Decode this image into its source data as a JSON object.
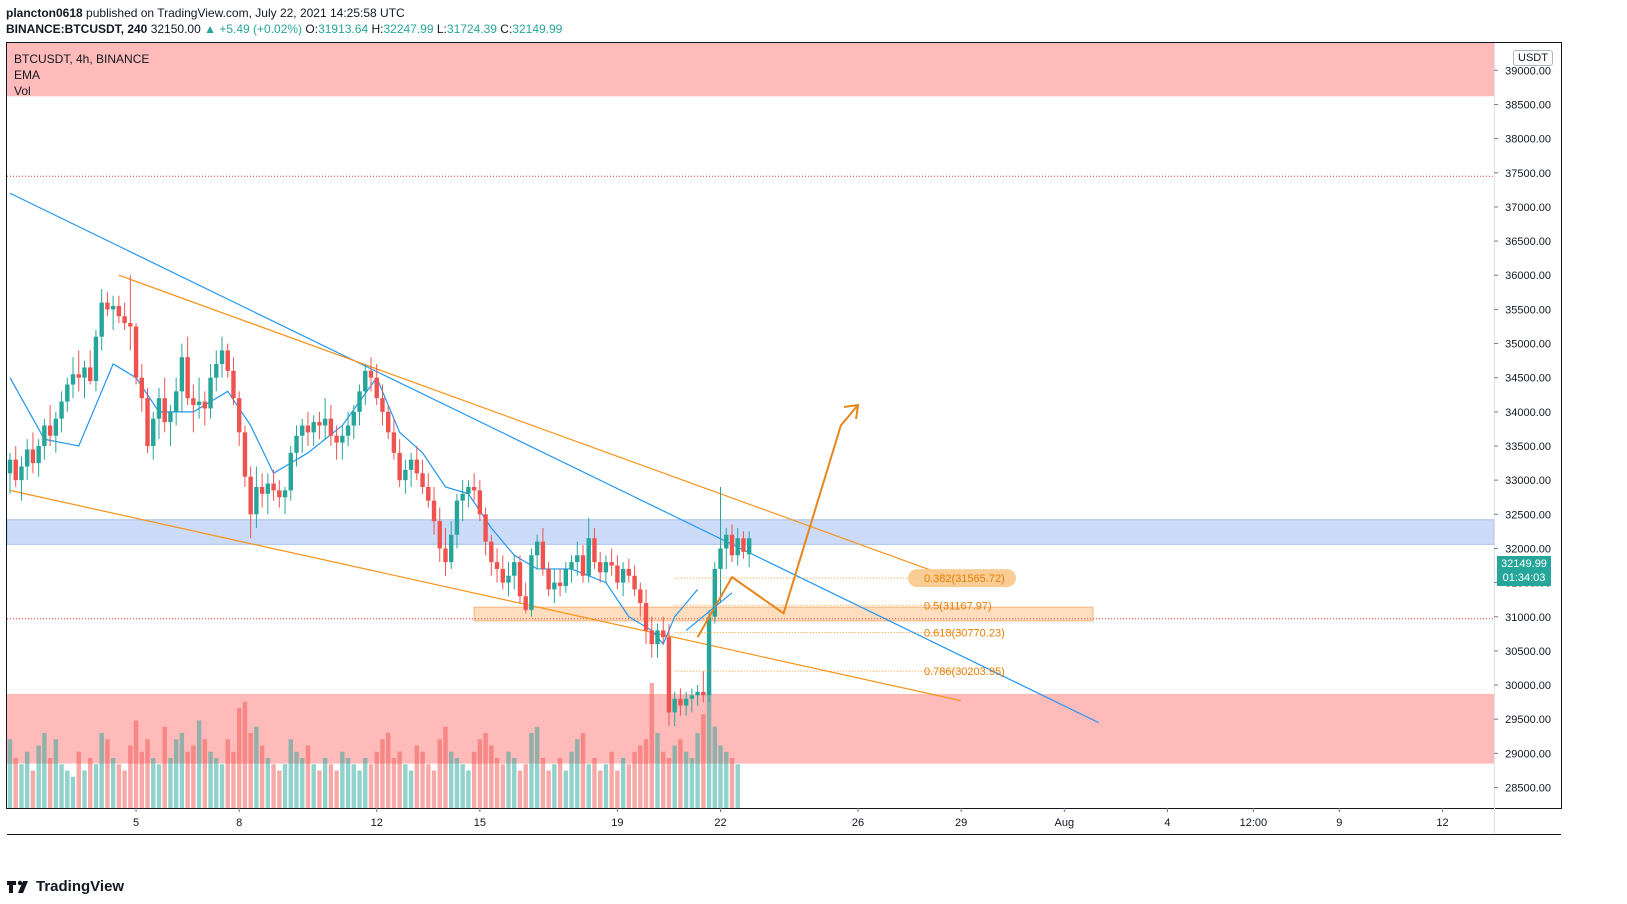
{
  "header": {
    "publisher": "plancton0618",
    "published_text": "published on TradingView.com, July 22, 2021 14:25:58 UTC",
    "symbol_full": "BINANCE:BTCUSDT, 240",
    "last": "32150.00",
    "change": "▲ +5.49 (+0.02%)",
    "o_label": "O:",
    "o": "31913.64",
    "h_label": "H:",
    "h": "32247.99",
    "l_label": "L:",
    "l": "31724.39",
    "c_label": "C:",
    "c": "32149.99"
  },
  "legend": {
    "title": "BTCUSDT, 4h, BINANCE",
    "ema": "EMA",
    "vol": "Vol"
  },
  "axis": {
    "currency": "USDT",
    "last_price": "32149.99",
    "countdown": "01:34:03"
  },
  "brand": "TradingView",
  "colors": {
    "up": "#26a69a",
    "down": "#ef5350",
    "ema": "#2196f3",
    "trend_orange": "#f7931a",
    "trend_blue": "#2196f3",
    "resistance_zone": "#ffb3b3",
    "support_zone": "#c9d9f7",
    "fib_zone": "#ffd9b8"
  },
  "chart_data": {
    "type": "candlestick",
    "symbol": "BTCUSDT",
    "interval": "4h",
    "exchange": "BINANCE",
    "ylim": [
      28200,
      39400
    ],
    "y_ticks": [
      28500,
      29000,
      29500,
      30000,
      30500,
      31000,
      31500,
      32000,
      32500,
      33000,
      33500,
      34000,
      34500,
      35000,
      35500,
      36000,
      36500,
      37000,
      37500,
      38000,
      38500,
      39000
    ],
    "y_tick_labels": [
      "28500.00",
      "29000.00",
      "29500.00",
      "30000.00",
      "30500.00",
      "31000.00",
      "31500.00",
      "32000.00",
      "32500.00",
      "33000.00",
      "33500.00",
      "34000.00",
      "34500.00",
      "35000.00",
      "35500.00",
      "36000.00",
      "36500.00",
      "37000.00",
      "37500.00",
      "38000.00",
      "38500.00",
      "39000.00"
    ],
    "x_tick_labels": [
      "5",
      "8",
      "12",
      "15",
      "19",
      "22",
      "26",
      "29",
      "Aug",
      "4",
      "12:00",
      "9",
      "12"
    ],
    "x_tick_bars": [
      22,
      40,
      64,
      82,
      106,
      124,
      148,
      166,
      184,
      202,
      217,
      232,
      250
    ],
    "candles_ohlc": [
      [
        33100,
        33400,
        32800,
        33300
      ],
      [
        33300,
        33500,
        32900,
        33000
      ],
      [
        33000,
        33350,
        32700,
        33200
      ],
      [
        33200,
        33600,
        33000,
        33450
      ],
      [
        33450,
        33700,
        33100,
        33250
      ],
      [
        33250,
        33600,
        33050,
        33500
      ],
      [
        33500,
        33900,
        33300,
        33800
      ],
      [
        33800,
        34100,
        33500,
        33650
      ],
      [
        33650,
        34000,
        33400,
        33900
      ],
      [
        33900,
        34300,
        33700,
        34150
      ],
      [
        34150,
        34500,
        34000,
        34400
      ],
      [
        34400,
        34800,
        34200,
        34550
      ],
      [
        34550,
        34900,
        34300,
        34500
      ],
      [
        34500,
        34750,
        34200,
        34650
      ],
      [
        34650,
        34900,
        34400,
        34450
      ],
      [
        34450,
        35200,
        34300,
        35100
      ],
      [
        35100,
        35800,
        34900,
        35600
      ],
      [
        35600,
        35750,
        35400,
        35500
      ],
      [
        35500,
        35700,
        35200,
        35550
      ],
      [
        35550,
        35700,
        35300,
        35400
      ],
      [
        35400,
        35600,
        35200,
        35300
      ],
      [
        35300,
        36000,
        34900,
        35250
      ],
      [
        35250,
        35300,
        34400,
        34500
      ],
      [
        34500,
        34700,
        34000,
        34200
      ],
      [
        34200,
        34350,
        33400,
        33500
      ],
      [
        33500,
        34000,
        33300,
        33900
      ],
      [
        33900,
        34350,
        33600,
        34200
      ],
      [
        34200,
        34500,
        33700,
        33850
      ],
      [
        33850,
        34100,
        33500,
        34000
      ],
      [
        34000,
        34500,
        33800,
        34300
      ],
      [
        34300,
        35000,
        34000,
        34800
      ],
      [
        34800,
        35100,
        34100,
        34200
      ],
      [
        34200,
        34400,
        33700,
        34100
      ],
      [
        34100,
        34500,
        33900,
        34150
      ],
      [
        34150,
        34300,
        33800,
        34050
      ],
      [
        34050,
        34700,
        33900,
        34500
      ],
      [
        34500,
        34900,
        34300,
        34700
      ],
      [
        34700,
        35100,
        34500,
        34900
      ],
      [
        34900,
        35000,
        34500,
        34600
      ],
      [
        34600,
        34800,
        34100,
        34200
      ],
      [
        34200,
        34300,
        33500,
        33700
      ],
      [
        33700,
        33800,
        32900,
        33050
      ],
      [
        33050,
        33200,
        32150,
        32500
      ],
      [
        32500,
        33200,
        32300,
        32900
      ],
      [
        32900,
        33100,
        32600,
        32800
      ],
      [
        32800,
        33100,
        32500,
        32950
      ],
      [
        32950,
        33150,
        32700,
        32850
      ],
      [
        32850,
        33000,
        32600,
        32750
      ],
      [
        32750,
        32900,
        32500,
        32850
      ],
      [
        32850,
        33500,
        32700,
        33400
      ],
      [
        33400,
        33800,
        33200,
        33650
      ],
      [
        33650,
        33900,
        33400,
        33800
      ],
      [
        33800,
        34000,
        33500,
        33700
      ],
      [
        33700,
        33950,
        33500,
        33850
      ],
      [
        33850,
        34000,
        33600,
        33800
      ],
      [
        33800,
        34200,
        33600,
        33900
      ],
      [
        33900,
        34100,
        33500,
        33650
      ],
      [
        33650,
        33800,
        33300,
        33550
      ],
      [
        33550,
        33800,
        33300,
        33650
      ],
      [
        33650,
        34000,
        33500,
        33800
      ],
      [
        33800,
        34100,
        33600,
        34000
      ],
      [
        34000,
        34400,
        33800,
        34300
      ],
      [
        34300,
        34700,
        34100,
        34600
      ],
      [
        34600,
        34800,
        34300,
        34500
      ],
      [
        34500,
        34700,
        34100,
        34200
      ],
      [
        34200,
        34400,
        33800,
        34000
      ],
      [
        34000,
        34100,
        33600,
        33700
      ],
      [
        33700,
        33900,
        33300,
        33400
      ],
      [
        33400,
        33600,
        32900,
        33000
      ],
      [
        33000,
        33300,
        32800,
        33150
      ],
      [
        33150,
        33400,
        32900,
        33300
      ],
      [
        33300,
        33500,
        33000,
        33100
      ],
      [
        33100,
        33300,
        32800,
        32900
      ],
      [
        32900,
        33100,
        32600,
        32700
      ],
      [
        32700,
        32900,
        32200,
        32400
      ],
      [
        32400,
        32600,
        31800,
        32000
      ],
      [
        32000,
        32300,
        31600,
        31800
      ],
      [
        31800,
        32400,
        31700,
        32200
      ],
      [
        32200,
        32800,
        32000,
        32700
      ],
      [
        32700,
        33000,
        32400,
        32800
      ],
      [
        32800,
        33000,
        32600,
        32900
      ],
      [
        32900,
        33100,
        32700,
        32850
      ],
      [
        32850,
        33000,
        32400,
        32500
      ],
      [
        32500,
        32600,
        31900,
        32100
      ],
      [
        32100,
        32200,
        31600,
        31800
      ],
      [
        31800,
        32000,
        31500,
        31700
      ],
      [
        31700,
        31900,
        31400,
        31500
      ],
      [
        31500,
        31800,
        31300,
        31600
      ],
      [
        31600,
        31900,
        31400,
        31800
      ],
      [
        31800,
        31900,
        31200,
        31300
      ],
      [
        31300,
        31500,
        31050,
        31100
      ],
      [
        31100,
        32000,
        31000,
        31900
      ],
      [
        31900,
        32200,
        31700,
        32100
      ],
      [
        32100,
        32300,
        31600,
        31700
      ],
      [
        31700,
        31800,
        31300,
        31400
      ],
      [
        31400,
        31700,
        31200,
        31500
      ],
      [
        31500,
        31700,
        31300,
        31450
      ],
      [
        31450,
        31800,
        31350,
        31700
      ],
      [
        31700,
        31900,
        31500,
        31800
      ],
      [
        31800,
        32100,
        31600,
        31900
      ],
      [
        31900,
        32050,
        31500,
        31600
      ],
      [
        31600,
        32450,
        31500,
        32150
      ],
      [
        32150,
        32300,
        31700,
        31800
      ],
      [
        31800,
        31950,
        31500,
        31650
      ],
      [
        31650,
        31900,
        31500,
        31800
      ],
      [
        31800,
        32000,
        31600,
        31750
      ],
      [
        31750,
        31900,
        31400,
        31500
      ],
      [
        31500,
        31800,
        31300,
        31700
      ],
      [
        31700,
        31850,
        31500,
        31600
      ],
      [
        31600,
        31750,
        31300,
        31400
      ],
      [
        31400,
        31500,
        31000,
        31200
      ],
      [
        31200,
        31400,
        30600,
        30800
      ],
      [
        30800,
        31000,
        30400,
        30600
      ],
      [
        30600,
        30900,
        30400,
        30800
      ],
      [
        30800,
        31000,
        30600,
        30700
      ],
      [
        30700,
        30900,
        29400,
        29600
      ],
      [
        29600,
        29900,
        29400,
        29800
      ],
      [
        29800,
        29950,
        29550,
        29700
      ],
      [
        29700,
        29900,
        29550,
        29800
      ],
      [
        29800,
        29950,
        29600,
        29850
      ],
      [
        29850,
        30000,
        29700,
        29900
      ],
      [
        29900,
        30200,
        29750,
        29850
      ],
      [
        29850,
        31100,
        29750,
        31000
      ],
      [
        31000,
        31800,
        30900,
        31700
      ],
      [
        31700,
        32900,
        31200,
        32000
      ],
      [
        32000,
        32300,
        31700,
        32200
      ],
      [
        32200,
        32350,
        31800,
        31900
      ],
      [
        31900,
        32300,
        31750,
        32150
      ],
      [
        32150,
        32250,
        31850,
        31950
      ],
      [
        31914,
        32248,
        31724,
        32150
      ]
    ],
    "ema": [
      [
        0,
        34500
      ],
      [
        6,
        33600
      ],
      [
        12,
        33500
      ],
      [
        18,
        34700
      ],
      [
        22,
        34500
      ],
      [
        26,
        34000
      ],
      [
        32,
        34000
      ],
      [
        38,
        34300
      ],
      [
        42,
        33800
      ],
      [
        46,
        33100
      ],
      [
        52,
        33400
      ],
      [
        58,
        33800
      ],
      [
        64,
        34500
      ],
      [
        68,
        33700
      ],
      [
        72,
        33400
      ],
      [
        76,
        32900
      ],
      [
        80,
        32800
      ],
      [
        84,
        32300
      ],
      [
        88,
        31900
      ],
      [
        92,
        31700
      ],
      [
        98,
        31700
      ],
      [
        104,
        31500
      ],
      [
        108,
        31000
      ],
      [
        112,
        30800
      ],
      [
        114,
        30600
      ],
      [
        116,
        31000
      ],
      [
        118,
        31200
      ],
      [
        120,
        31400
      ]
    ],
    "volume_relative": [
      0.55,
      0.4,
      0.35,
      0.45,
      0.3,
      0.5,
      0.6,
      0.4,
      0.55,
      0.35,
      0.3,
      0.25,
      0.45,
      0.3,
      0.4,
      0.35,
      0.6,
      0.55,
      0.4,
      0.35,
      0.3,
      0.5,
      0.7,
      0.45,
      0.55,
      0.4,
      0.35,
      0.65,
      0.4,
      0.55,
      0.6,
      0.45,
      0.5,
      0.7,
      0.55,
      0.45,
      0.4,
      0.35,
      0.55,
      0.45,
      0.8,
      0.85,
      0.6,
      0.65,
      0.5,
      0.4,
      0.35,
      0.3,
      0.35,
      0.55,
      0.45,
      0.4,
      0.5,
      0.35,
      0.3,
      0.4,
      0.35,
      0.3,
      0.45,
      0.4,
      0.35,
      0.3,
      0.4,
      0.35,
      0.45,
      0.55,
      0.6,
      0.4,
      0.45,
      0.35,
      0.3,
      0.5,
      0.45,
      0.35,
      0.3,
      0.55,
      0.65,
      0.45,
      0.4,
      0.35,
      0.3,
      0.45,
      0.55,
      0.6,
      0.5,
      0.4,
      0.35,
      0.45,
      0.4,
      0.3,
      0.35,
      0.6,
      0.65,
      0.4,
      0.3,
      0.35,
      0.4,
      0.3,
      0.45,
      0.55,
      0.6,
      0.35,
      0.4,
      0.3,
      0.35,
      0.45,
      0.3,
      0.4,
      0.35,
      0.45,
      0.5,
      0.55,
      1.0,
      0.6,
      0.45,
      0.4,
      0.5,
      0.55,
      0.45,
      0.4,
      0.6,
      0.75,
      0.95,
      0.65,
      0.5,
      0.45,
      0.4,
      0.35
    ],
    "zones": [
      {
        "name": "resistance",
        "y0": 38620,
        "y1": 39400
      },
      {
        "name": "support_blue",
        "y0": 32060,
        "y1": 32420
      },
      {
        "name": "fib_box",
        "y0": 30940,
        "y1": 31140,
        "bar0": 81,
        "bar1": 189
      },
      {
        "name": "demand",
        "y0": 28850,
        "y1": 29870
      }
    ],
    "hlines": [
      37450,
      30970
    ],
    "trendlines": [
      {
        "name": "blue_down",
        "points": [
          [
            0,
            37200
          ],
          [
            190,
            29450
          ]
        ]
      },
      {
        "name": "orange_top",
        "points": [
          [
            19,
            36000
          ],
          [
            166,
            31520
          ]
        ]
      },
      {
        "name": "orange_bottom",
        "points": [
          [
            0,
            32850
          ],
          [
            166,
            29770
          ]
        ]
      }
    ],
    "fib_levels": [
      {
        "label": "0.382(31565.72)",
        "value": 31565.72
      },
      {
        "label": "0.5(31167.97)",
        "value": 31167.97
      },
      {
        "label": "0.618(30770.23)",
        "value": 30770.23
      },
      {
        "label": "0.786(30203.95)",
        "value": 30203.95
      }
    ],
    "forecast_path": [
      [
        120,
        30700
      ],
      [
        126,
        31580
      ],
      [
        135,
        31050
      ],
      [
        145,
        33800
      ],
      [
        148,
        34100
      ]
    ],
    "small_arrow": [
      [
        118,
        30800
      ],
      [
        126,
        31350
      ]
    ]
  }
}
